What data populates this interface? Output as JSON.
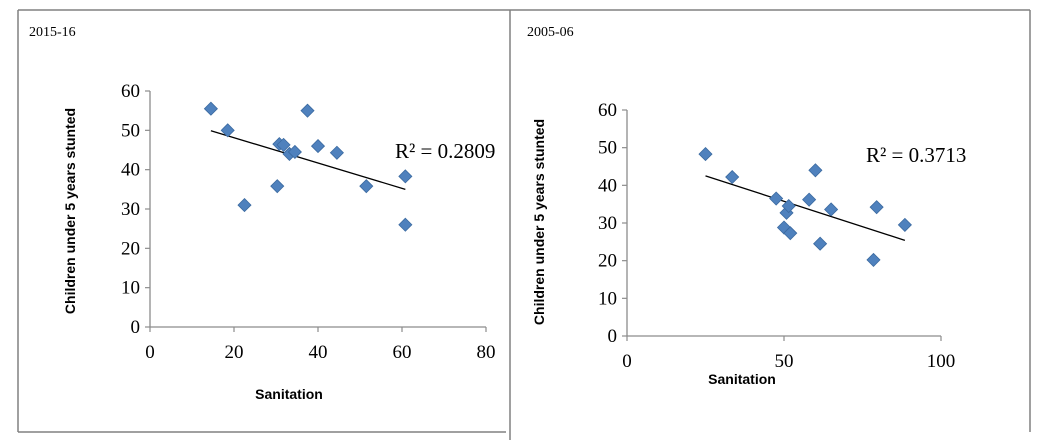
{
  "chart_data": [
    {
      "type": "scatter",
      "title": "2015-16",
      "xlabel": "Sanitation",
      "ylabel": "Children  under 5 years  stunted",
      "xlim": [
        0,
        80
      ],
      "ylim": [
        0,
        60
      ],
      "x_ticks": [
        "0",
        "20",
        "40",
        "60",
        "80"
      ],
      "y_ticks": [
        "0",
        "10",
        "20",
        "30",
        "40",
        "50",
        "60"
      ],
      "points": [
        {
          "x": 14.5,
          "y": 55.5
        },
        {
          "x": 18.5,
          "y": 50
        },
        {
          "x": 22.5,
          "y": 31
        },
        {
          "x": 30.3,
          "y": 35.8
        },
        {
          "x": 30.8,
          "y": 46.5
        },
        {
          "x": 31.8,
          "y": 46.3
        },
        {
          "x": 33.2,
          "y": 44
        },
        {
          "x": 34.5,
          "y": 44.5
        },
        {
          "x": 37.5,
          "y": 55
        },
        {
          "x": 40,
          "y": 46
        },
        {
          "x": 44.5,
          "y": 44.3
        },
        {
          "x": 51.5,
          "y": 35.8
        },
        {
          "x": 60.8,
          "y": 38.3
        },
        {
          "x": 60.8,
          "y": 26
        }
      ],
      "trendline": {
        "x": [
          14.5,
          60.8
        ],
        "y": [
          49.9,
          35
        ]
      },
      "annotation": "R² = 0.2809",
      "grid": false
    },
    {
      "type": "scatter",
      "title": "2005-06",
      "xlabel": "Sanitation",
      "ylabel": "Children  under 5 years stunted",
      "xlim": [
        0,
        100
      ],
      "ylim": [
        0,
        60
      ],
      "x_ticks": [
        "0",
        "50",
        "100"
      ],
      "y_ticks": [
        "0",
        "10",
        "20",
        "30",
        "40",
        "50",
        "60"
      ],
      "points": [
        {
          "x": 25,
          "y": 48.3
        },
        {
          "x": 33.5,
          "y": 42.2
        },
        {
          "x": 47.5,
          "y": 36.5
        },
        {
          "x": 50,
          "y": 28.8
        },
        {
          "x": 50.8,
          "y": 32.7
        },
        {
          "x": 51.5,
          "y": 34.5
        },
        {
          "x": 52,
          "y": 27.3
        },
        {
          "x": 58,
          "y": 36.2
        },
        {
          "x": 60,
          "y": 44
        },
        {
          "x": 61.5,
          "y": 24.5
        },
        {
          "x": 65,
          "y": 33.6
        },
        {
          "x": 78.5,
          "y": 20.2
        },
        {
          "x": 79.5,
          "y": 34.2
        },
        {
          "x": 88.5,
          "y": 29.5
        }
      ],
      "trendline": {
        "x": [
          25,
          88.5
        ],
        "y": [
          42.5,
          25.4
        ]
      },
      "annotation": "R² = 0.3713",
      "grid": false
    }
  ],
  "colors": {
    "marker_fill": "#4f81bd",
    "marker_stroke": "#3b6aa0",
    "axis": "#8c8c8c",
    "trendline": "#000000",
    "frame": "#808080"
  }
}
